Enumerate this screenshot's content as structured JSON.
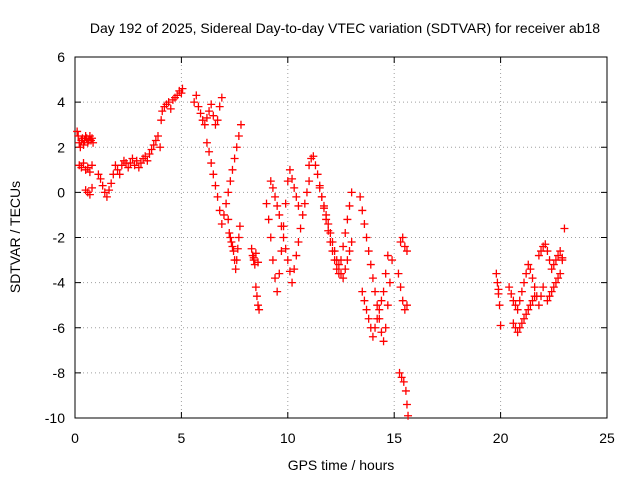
{
  "chart_data": {
    "type": "scatter",
    "title": "Day 192 of 2025, Sidereal Day-to-day VTEC variation (SDTVAR) for receiver ab18",
    "xlabel": "GPS time / hours",
    "ylabel": "SDTVAR / TECUs",
    "xlim": [
      0,
      25
    ],
    "ylim": [
      -10,
      6
    ],
    "xticks": [
      0,
      5,
      10,
      15,
      20,
      25
    ],
    "yticks": [
      6,
      4,
      2,
      0,
      -2,
      -4,
      -6,
      -8,
      -10
    ],
    "xtick_labels": [
      "0",
      "5",
      "10",
      "15",
      "20",
      "25"
    ],
    "ytick_labels": [
      "6",
      "4",
      "2",
      "0",
      "-2",
      "-4",
      "-6",
      "-8",
      "-10"
    ],
    "grid": true,
    "marker": "+",
    "color": "#ff0000",
    "series": [
      {
        "name": "SDTVAR",
        "x": [
          0.1,
          0.15,
          0.2,
          0.25,
          0.3,
          0.35,
          0.4,
          0.45,
          0.5,
          0.55,
          0.6,
          0.65,
          0.7,
          0.75,
          0.8,
          0.85,
          0.2,
          0.3,
          0.4,
          0.5,
          0.6,
          0.7,
          0.8,
          0.5,
          0.6,
          0.7,
          0.8,
          1.1,
          1.2,
          1.3,
          1.4,
          1.5,
          1.6,
          1.7,
          1.8,
          1.9,
          2.0,
          2.1,
          2.2,
          2.3,
          2.4,
          2.5,
          2.6,
          2.7,
          2.8,
          2.9,
          3.0,
          3.1,
          3.2,
          3.3,
          3.4,
          3.5,
          3.6,
          3.7,
          3.8,
          3.9,
          4.0,
          4.05,
          4.1,
          4.2,
          4.3,
          4.4,
          4.5,
          4.6,
          4.7,
          4.8,
          4.9,
          5.0,
          5.05,
          5.6,
          5.7,
          5.8,
          5.9,
          6.0,
          6.1,
          6.2,
          6.3,
          6.4,
          6.5,
          6.6,
          6.7,
          6.8,
          6.9,
          6.2,
          6.3,
          6.4,
          6.5,
          6.6,
          6.7,
          6.8,
          6.9,
          7.0,
          7.1,
          7.2,
          7.3,
          7.4,
          7.5,
          7.6,
          7.7,
          7.8,
          7.2,
          7.25,
          7.3,
          7.35,
          7.4,
          7.45,
          7.5,
          7.55,
          7.6,
          7.65,
          7.7,
          7.75,
          8.3,
          8.35,
          8.4,
          8.45,
          8.5,
          8.55,
          8.6,
          8.65,
          8.4,
          8.5,
          8.6,
          9.0,
          9.1,
          9.2,
          9.3,
          9.4,
          9.5,
          9.6,
          9.7,
          9.8,
          9.9,
          10.0,
          10.1,
          10.2,
          10.3,
          10.4,
          10.5,
          9.2,
          9.3,
          9.4,
          9.5,
          9.6,
          9.7,
          9.8,
          9.9,
          10.0,
          10.1,
          10.2,
          10.3,
          10.4,
          10.5,
          10.6,
          10.7,
          10.8,
          10.9,
          11.0,
          11.0,
          11.1,
          11.2,
          11.3,
          11.4,
          11.5,
          11.6,
          11.7,
          11.8,
          11.9,
          12.0,
          12.1,
          12.2,
          12.3,
          12.4,
          12.5,
          12.6,
          12.7,
          12.8,
          12.9,
          13.0,
          11.5,
          11.6,
          11.7,
          11.8,
          11.9,
          12.0,
          12.1,
          12.2,
          12.3,
          12.4,
          12.5,
          12.6,
          12.7,
          12.8,
          12.9,
          13.0,
          13.4,
          13.5,
          13.6,
          13.7,
          13.8,
          13.9,
          14.0,
          14.1,
          14.2,
          14.3,
          14.4,
          14.5,
          14.6,
          14.7,
          14.8,
          14.9,
          13.5,
          13.6,
          13.7,
          13.8,
          13.9,
          14.0,
          14.1,
          14.2,
          14.3,
          14.4,
          14.5,
          14.6,
          14.7,
          15.2,
          15.3,
          15.4,
          15.5,
          15.6,
          15.25,
          15.35,
          15.45,
          15.55,
          15.6,
          15.65,
          15.3,
          15.4,
          15.5,
          15.6,
          19.8,
          19.85,
          19.9,
          19.95,
          20.0,
          19.9,
          20.4,
          20.5,
          20.6,
          20.7,
          20.8,
          20.9,
          21.0,
          21.1,
          21.2,
          21.3,
          21.4,
          21.5,
          21.6,
          21.7,
          21.8,
          21.9,
          22.0,
          20.6,
          20.7,
          20.8,
          20.9,
          21.0,
          21.1,
          21.2,
          21.3,
          21.4,
          21.5,
          21.6,
          21.8,
          21.9,
          22.0,
          22.1,
          22.2,
          22.3,
          22.4,
          22.5,
          22.6,
          22.7,
          22.8,
          22.9,
          22.2,
          22.3,
          22.4,
          22.5,
          22.6,
          22.7,
          22.8,
          22.9,
          23.0
        ],
        "y": [
          2.7,
          2.5,
          2.2,
          2.0,
          2.3,
          2.4,
          2.1,
          2.3,
          2.5,
          2.4,
          2.2,
          2.3,
          2.5,
          2.3,
          2.4,
          2.2,
          1.2,
          1.1,
          1.3,
          1.0,
          1.1,
          0.9,
          1.2,
          0.1,
          0.0,
          -0.1,
          0.2,
          0.8,
          0.6,
          0.3,
          0.0,
          -0.2,
          0.1,
          0.4,
          0.8,
          1.2,
          1.0,
          0.8,
          1.2,
          1.4,
          1.3,
          1.1,
          1.3,
          1.5,
          1.2,
          1.4,
          1.1,
          1.3,
          1.5,
          1.6,
          1.4,
          1.7,
          1.9,
          2.1,
          2.3,
          2.5,
          2.0,
          3.2,
          3.6,
          3.8,
          3.9,
          4.0,
          3.7,
          4.1,
          4.2,
          4.3,
          4.5,
          4.4,
          4.6,
          4.0,
          4.3,
          3.8,
          3.5,
          3.2,
          3.0,
          3.3,
          3.6,
          3.9,
          3.4,
          3.0,
          3.2,
          3.8,
          4.2,
          2.2,
          1.8,
          1.3,
          0.8,
          0.3,
          -0.2,
          -0.8,
          -1.4,
          -1.0,
          -0.5,
          0.0,
          0.5,
          1.0,
          1.5,
          2.0,
          2.5,
          3.0,
          -1.2,
          -1.8,
          -2.0,
          -2.2,
          -2.4,
          -2.6,
          -3.0,
          -3.4,
          -3.0,
          -2.5,
          -2.0,
          -1.5,
          -2.5,
          -2.8,
          -3.0,
          -3.2,
          -4.2,
          -4.6,
          -5.0,
          -5.2,
          -2.9,
          -2.7,
          -3.1,
          -0.5,
          -1.2,
          -2.0,
          -3.0,
          -3.8,
          -4.4,
          -3.6,
          -2.6,
          -1.5,
          -0.5,
          0.5,
          1.0,
          0.6,
          0.2,
          -0.2,
          -0.6,
          0.5,
          0.2,
          -0.2,
          -0.6,
          -1.0,
          -1.5,
          -2.0,
          -2.5,
          -3.0,
          -3.5,
          -4.0,
          -3.4,
          -2.8,
          -2.2,
          -1.6,
          -1.0,
          -0.5,
          0.0,
          0.5,
          1.2,
          1.5,
          1.6,
          1.2,
          0.8,
          0.3,
          -0.2,
          -0.7,
          -1.2,
          -1.7,
          -2.2,
          -2.6,
          -3.0,
          -3.4,
          -3.6,
          -3.0,
          -2.4,
          -1.8,
          -1.2,
          -0.6,
          0.0,
          0.2,
          -0.2,
          -0.6,
          -1.0,
          -1.4,
          -1.8,
          -2.2,
          -2.6,
          -3.0,
          -3.2,
          -3.6,
          -3.8,
          -3.4,
          -3.0,
          -2.6,
          -2.2,
          -0.2,
          -0.8,
          -1.4,
          -2.0,
          -2.6,
          -3.2,
          -3.8,
          -4.4,
          -5.0,
          -5.6,
          -6.2,
          -6.6,
          -6.0,
          -5.0,
          -4.0,
          -3.0,
          -4.4,
          -4.8,
          -5.2,
          -5.6,
          -6.0,
          -6.4,
          -6.0,
          -5.6,
          -5.2,
          -4.8,
          -4.4,
          -3.6,
          -2.8,
          -3.6,
          -4.2,
          -4.8,
          -5.2,
          -5.0,
          -8.0,
          -8.2,
          -8.4,
          -8.8,
          -9.4,
          -9.9,
          -2.2,
          -2.0,
          -2.4,
          -2.6,
          -3.6,
          -4.0,
          -4.5,
          -5.0,
          -5.9,
          -4.3,
          -4.2,
          -4.5,
          -4.8,
          -5.0,
          -5.2,
          -4.8,
          -4.4,
          -4.0,
          -3.6,
          -3.2,
          -3.4,
          -3.8,
          -4.2,
          -4.6,
          -5.0,
          -4.6,
          -4.2,
          -5.8,
          -6.0,
          -6.2,
          -6.0,
          -5.8,
          -5.6,
          -5.4,
          -5.2,
          -5.0,
          -4.8,
          -4.6,
          -2.8,
          -2.6,
          -2.4,
          -2.3,
          -2.6,
          -3.0,
          -3.4,
          -3.2,
          -3.0,
          -2.8,
          -2.6,
          -2.9,
          -4.8,
          -4.6,
          -4.4,
          -4.2,
          -4.0,
          -3.8,
          -3.6,
          -3.0,
          -1.6
        ]
      }
    ]
  }
}
